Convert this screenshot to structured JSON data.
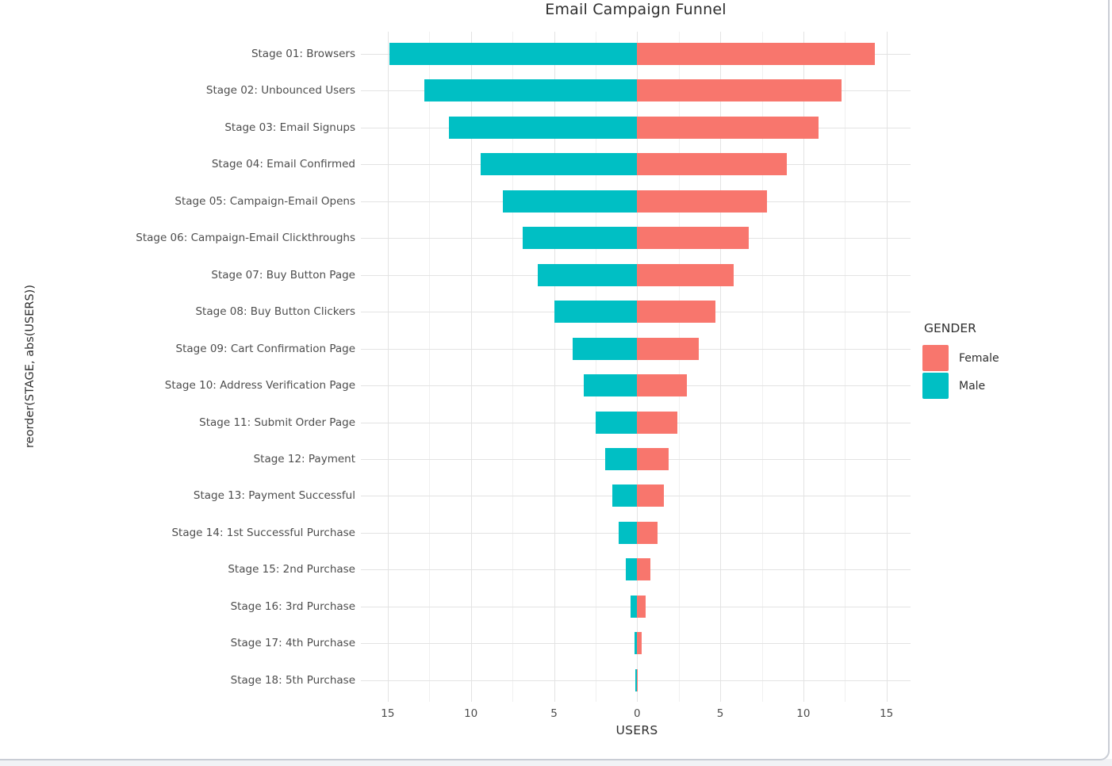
{
  "chart_data": {
    "type": "bar",
    "variant": "diverging-horizontal-funnel",
    "title": "Email Campaign Funnel",
    "xlabel": "USERS",
    "ylabel": "reorder(STAGE, abs(USERS))",
    "grid": true,
    "xlim": [
      -16.5,
      16.5
    ],
    "x_axis": {
      "ticks": [
        {
          "value": -15,
          "label": "15"
        },
        {
          "value": -10,
          "label": "10"
        },
        {
          "value": -5,
          "label": "5"
        },
        {
          "value": 0,
          "label": "0"
        },
        {
          "value": 5,
          "label": "5"
        },
        {
          "value": 10,
          "label": "10"
        },
        {
          "value": 15,
          "label": "15"
        }
      ],
      "minor_ticks": [
        -12.5,
        -7.5,
        -2.5,
        2.5,
        7.5,
        12.5
      ]
    },
    "categories": [
      "Stage 01: Browsers",
      "Stage 02: Unbounced Users",
      "Stage 03: Email Signups",
      "Stage 04: Email Confirmed",
      "Stage 05: Campaign-Email Opens",
      "Stage 06: Campaign-Email Clickthroughs",
      "Stage 07: Buy Button Page",
      "Stage 08: Buy Button Clickers",
      "Stage 09: Cart Confirmation Page",
      "Stage 10: Address Verification Page",
      "Stage 11: Submit Order Page",
      "Stage 12: Payment",
      "Stage 13: Payment Successful",
      "Stage 14: 1st Successful Purchase",
      "Stage 15: 2nd Purchase",
      "Stage 16: 3rd Purchase",
      "Stage 17: 4th Purchase",
      "Stage 18: 5th Purchase"
    ],
    "series": [
      {
        "name": "Male",
        "color": "#00BFC4",
        "direction": "left",
        "values": [
          14.9,
          12.8,
          11.3,
          9.4,
          8.1,
          6.9,
          6.0,
          5.0,
          3.9,
          3.2,
          2.5,
          1.9,
          1.5,
          1.1,
          0.7,
          0.4,
          0.15,
          0.1
        ]
      },
      {
        "name": "Female",
        "color": "#F8766D",
        "direction": "right",
        "values": [
          14.3,
          12.3,
          10.9,
          9.0,
          7.8,
          6.7,
          5.8,
          4.7,
          3.7,
          3.0,
          2.4,
          1.9,
          1.6,
          1.25,
          0.8,
          0.5,
          0.25,
          0.03
        ]
      }
    ],
    "legend": {
      "title": "GENDER",
      "position": "right",
      "entries": [
        {
          "label": "Female",
          "color": "#F8766D"
        },
        {
          "label": "Male",
          "color": "#00BFC4"
        }
      ]
    }
  }
}
